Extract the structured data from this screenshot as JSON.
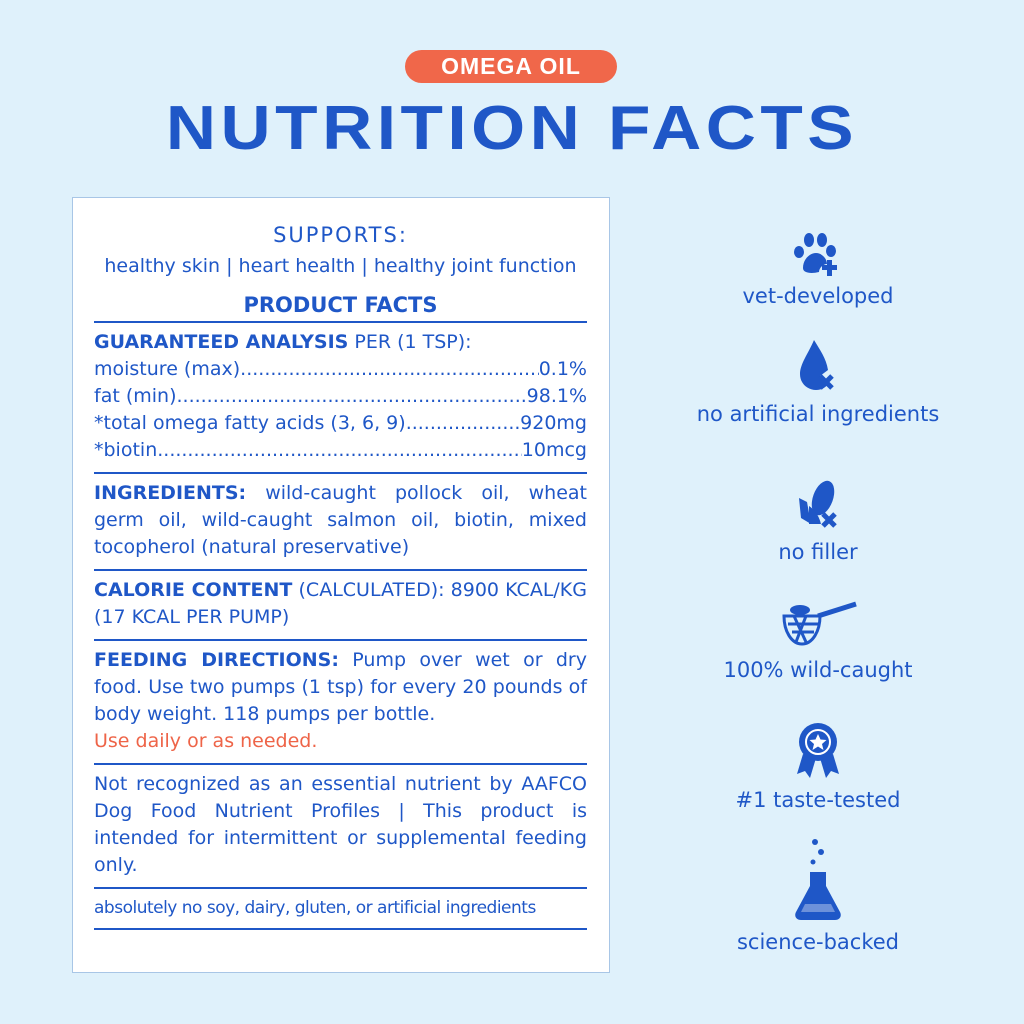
{
  "badge": "OMEGA OIL",
  "title": "NUTRITION FACTS",
  "card": {
    "supports_heading": "SUPPORTS:",
    "supports_list": "healthy skin | heart health | healthy joint function",
    "product_facts": "PRODUCT FACTS",
    "analysis_heading": "GUARANTEED ANALYSIS",
    "analysis_per": " PER (1 TSP):",
    "analysis": [
      {
        "label": "moisture (max)",
        "value": "0.1%"
      },
      {
        "label": "fat (min)",
        "value": "98.1%"
      },
      {
        "label": "*total omega fatty acids (3, 6, 9)",
        "value": "920mg"
      },
      {
        "label": "*biotin ",
        "value": "10mcg"
      }
    ],
    "ingredients_heading": "INGREDIENTS:",
    "ingredients": " wild-caught pollock oil, wheat germ oil, wild-caught salmon oil, biotin, mixed tocopherol (natural preservative)",
    "calorie_heading": "CALORIE CONTENT",
    "calorie": " (CALCULATED): 8900 KCAL/KG (17 KCAL PER PUMP)",
    "feeding_heading": "FEEDING DIRECTIONS:",
    "feeding": " Pump over wet or dry food. Use two pumps (1 tsp) for every 20 pounds of body weight. 118 pumps per bottle.",
    "feeding_note": "Use daily or as needed.",
    "disclaimer": "Not recognized as an essential nutrient by AAFCO Dog Food Nutrient Profiles | This product is intended for intermittent or supplemental feeding only.",
    "free_from": "absolutely no soy, dairy, gluten, or artificial ingredients"
  },
  "features": [
    {
      "icon": "paw-plus-icon",
      "label": "vet-developed"
    },
    {
      "icon": "drop-x-icon",
      "label": "no artificial ingredients"
    },
    {
      "icon": "corn-x-icon",
      "label": "no filler"
    },
    {
      "icon": "fish-net-icon",
      "label": "100% wild-caught"
    },
    {
      "icon": "award-ribbon-icon",
      "label": "#1 taste-tested"
    },
    {
      "icon": "flask-icon",
      "label": "science-backed"
    }
  ],
  "colors": {
    "background": "#dff1fb",
    "brand_blue": "#1f57c7",
    "accent_orange": "#f0674a"
  }
}
